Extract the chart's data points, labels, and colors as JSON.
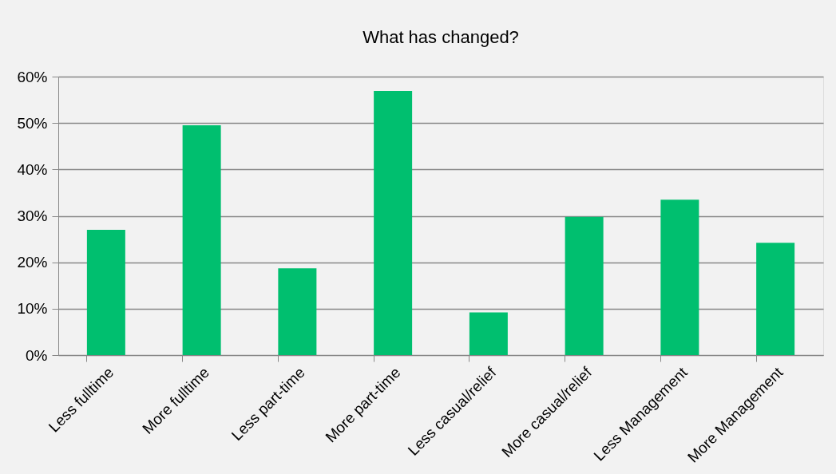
{
  "chart_data": {
    "type": "bar",
    "title": "What has changed?",
    "categories": [
      "Less fulltime",
      "More fulltime",
      "Less part-time",
      "More part-time",
      "Less casual/relief",
      "More casual/relief",
      "Less Management",
      "More Management"
    ],
    "values": [
      27.0,
      49.5,
      18.7,
      56.9,
      9.2,
      29.8,
      33.5,
      24.2
    ],
    "color": "#00bf6f",
    "ylim": [
      0,
      60
    ],
    "yticks": [
      {
        "value": 0,
        "label": "0%"
      },
      {
        "value": 10,
        "label": "10%"
      },
      {
        "value": 20,
        "label": "20%"
      },
      {
        "value": 30,
        "label": "30%"
      },
      {
        "value": 40,
        "label": "40%"
      },
      {
        "value": 50,
        "label": "50%"
      },
      {
        "value": 60,
        "label": "60%"
      }
    ],
    "grid": "y"
  }
}
